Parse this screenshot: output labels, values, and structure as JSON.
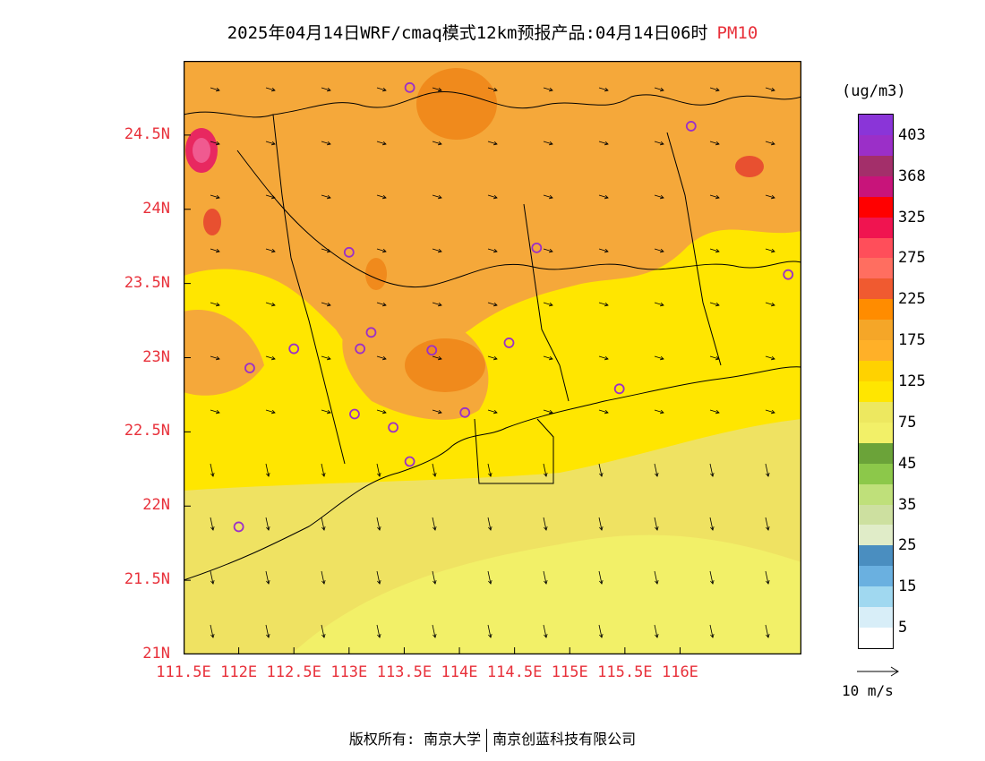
{
  "header": {
    "title": "2025年04月14日WRF/cmaq模式12km预报产品:04月14日06时",
    "variable": "PM10"
  },
  "map": {
    "lat_labels": [
      "24.5N",
      "24N",
      "23.5N",
      "23N",
      "22.5N",
      "22N",
      "21.5N",
      "21N"
    ],
    "lon_labels": [
      "111.5E",
      "112E",
      "112.5E",
      "113E",
      "113.5E",
      "114E",
      "114.5E",
      "115E",
      "115.5E",
      "116E"
    ],
    "extent": {
      "lon_min": 111.5,
      "lon_max": 117.1,
      "lat_min": 21,
      "lat_max": 25.0
    },
    "stations": [
      [
        113.55,
        24.82
      ],
      [
        116.1,
        24.56
      ],
      [
        113.0,
        23.71
      ],
      [
        114.7,
        23.74
      ],
      [
        116.98,
        23.56
      ],
      [
        112.5,
        23.06
      ],
      [
        113.1,
        23.06
      ],
      [
        113.2,
        23.17
      ],
      [
        113.75,
        23.05
      ],
      [
        114.45,
        23.1
      ],
      [
        112.1,
        22.93
      ],
      [
        113.05,
        22.62
      ],
      [
        113.4,
        22.53
      ],
      [
        113.55,
        22.3
      ],
      [
        114.05,
        22.63
      ],
      [
        115.45,
        22.79
      ],
      [
        112.0,
        21.86
      ]
    ]
  },
  "legend": {
    "unit": "(ug/m3)",
    "labels": [
      "403",
      "368",
      "325",
      "275",
      "225",
      "175",
      "125",
      "75",
      "45",
      "35",
      "25",
      "15",
      "5"
    ],
    "colors": [
      "#8a35d8",
      "#9b2fc8",
      "#a32f6a",
      "#c8147a",
      "#ff0000",
      "#f01450",
      "#ff4e5a",
      "#ff6e60",
      "#f05a30",
      "#ff8c00",
      "#f5a628",
      "#ffb028",
      "#ffd200",
      "#ffe600",
      "#ede860",
      "#f2f068",
      "#6ba339",
      "#8cc84a",
      "#bfe07a",
      "#cde0a0",
      "#e0ecc8",
      "#4a8ec0",
      "#6ab0e0",
      "#a0d8f0",
      "#d8eef8",
      "#ffffff"
    ],
    "wind_ref": "10 m/s"
  },
  "footer": {
    "copyright": "版权所有: 南京大学",
    "company": "南京创蓝科技有限公司"
  }
}
